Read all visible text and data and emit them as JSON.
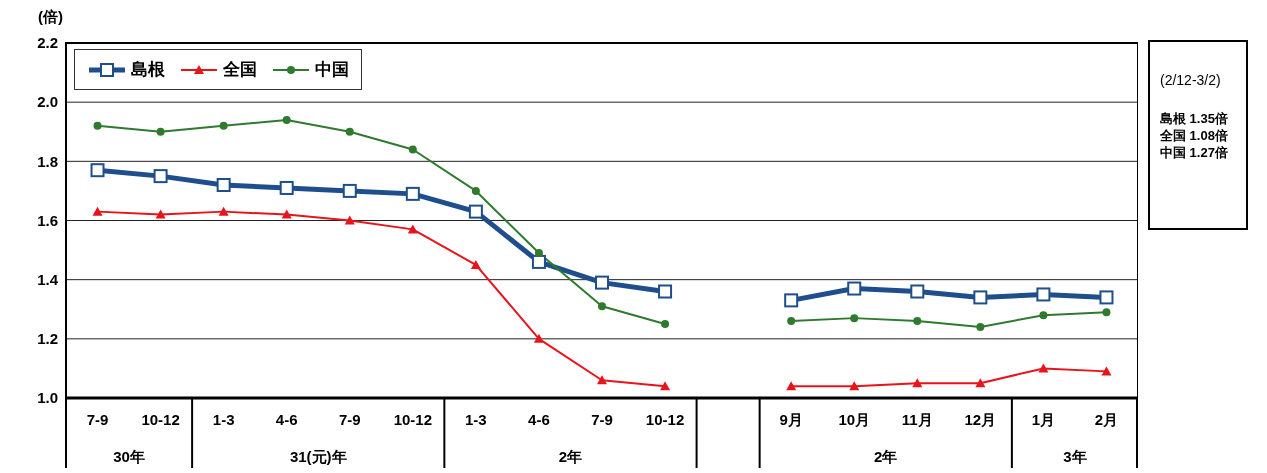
{
  "chart_data": {
    "type": "line",
    "ylabel": "(倍)",
    "categories": [
      "7-9",
      "10-12",
      "1-3",
      "4-6",
      "7-9",
      "10-12",
      "1-3",
      "4-6",
      "7-9",
      "10-12",
      null,
      "9月",
      "10月",
      "11月",
      "12月",
      "1月",
      "2月"
    ],
    "series": [
      {
        "name": "島根",
        "color": "#1f4e8c",
        "marker": "square",
        "values": [
          1.77,
          1.75,
          1.72,
          1.71,
          1.7,
          1.69,
          1.63,
          1.46,
          1.39,
          1.36,
          null,
          1.33,
          1.37,
          1.36,
          1.34,
          1.35,
          1.34
        ]
      },
      {
        "name": "全国",
        "color": "#e8141b",
        "marker": "triangle",
        "values": [
          1.63,
          1.62,
          1.63,
          1.62,
          1.6,
          1.57,
          1.45,
          1.2,
          1.06,
          1.04,
          null,
          1.04,
          1.04,
          1.05,
          1.05,
          1.1,
          1.09
        ]
      },
      {
        "name": "中国",
        "color": "#2f7a2f",
        "marker": "circle",
        "values": [
          1.92,
          1.9,
          1.92,
          1.94,
          1.9,
          1.84,
          1.7,
          1.49,
          1.31,
          1.25,
          null,
          1.26,
          1.27,
          1.26,
          1.24,
          1.28,
          1.29
        ]
      }
    ],
    "ylim": [
      1.0,
      2.2
    ],
    "yticks": [
      {
        "value": 1.0,
        "label": "1.0"
      },
      1.2,
      1.4,
      1.6,
      1.8,
      {
        "value": 2.0,
        "label": "2.0"
      },
      2.2
    ],
    "grid": "y",
    "legend": "top left",
    "annotations": [
      "30年",
      "31(元)年",
      "2年",
      "2年",
      "3年",
      "(2/12-3/2)",
      "島根 1.35倍",
      "全国 1.08倍",
      "中国 1.27倍"
    ]
  }
}
